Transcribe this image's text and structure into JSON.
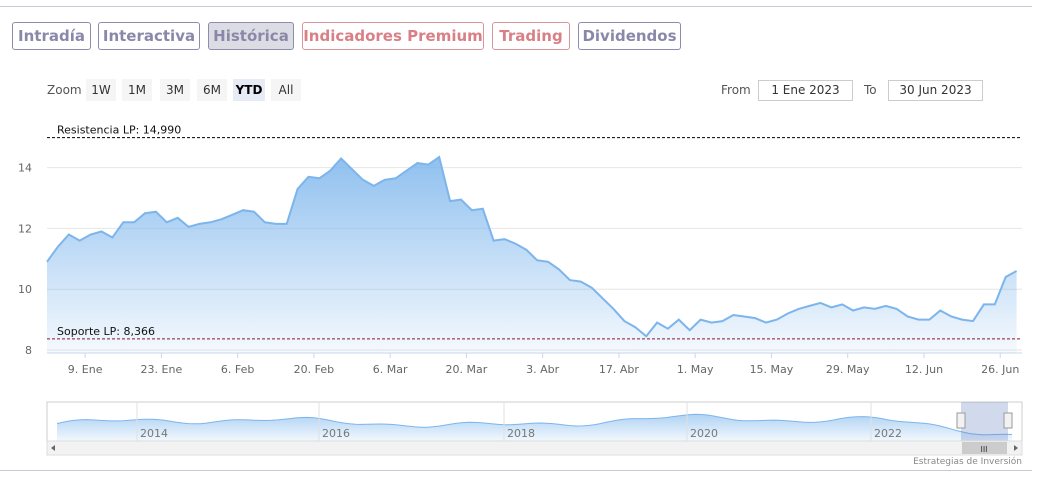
{
  "tabs": [
    {
      "label": "Intradía",
      "style": "normal"
    },
    {
      "label": "Interactiva",
      "style": "normal"
    },
    {
      "label": "Histórica",
      "style": "active"
    },
    {
      "label": "Indicadores Premium",
      "style": "premium"
    },
    {
      "label": "Trading",
      "style": "premium"
    },
    {
      "label": "Dividendos",
      "style": "normal"
    }
  ],
  "range_selector": {
    "zoom_label": "Zoom",
    "buttons": [
      "1W",
      "1M",
      "3M",
      "6M",
      "YTD",
      "All"
    ],
    "selected": "YTD",
    "from_label": "From",
    "from_value": "1 Ene 2023",
    "to_label": "To",
    "to_value": "30 Jun 2023"
  },
  "colors": {
    "accent": "#7cb5ec",
    "tab_border": "#8e8cae",
    "premium": "#d98087",
    "resistance_line": "#000000",
    "support_line": "#8b1a2b"
  },
  "chart_data": {
    "type": "area",
    "title": "",
    "xlabel": "",
    "ylabel": "",
    "ylim": [
      7.9,
      15.7
    ],
    "y_ticks": [
      8,
      10,
      12,
      14
    ],
    "x_ticks": [
      "9. Ene",
      "23. Ene",
      "6. Feb",
      "20. Feb",
      "6. Mar",
      "20. Mar",
      "3. Abr",
      "17. Abr",
      "1. May",
      "15. May",
      "29. May",
      "12. Jun",
      "26. Jun"
    ],
    "x_start": "2023-01-02",
    "x_end": "2023-06-30",
    "grid": true,
    "series": [
      {
        "points": [
          [
            "2023-01-02",
            10.9
          ],
          [
            "2023-01-04",
            11.4
          ],
          [
            "2023-01-06",
            11.8
          ],
          [
            "2023-01-08",
            11.6
          ],
          [
            "2023-01-10",
            11.8
          ],
          [
            "2023-01-12",
            11.9
          ],
          [
            "2023-01-14",
            11.7
          ],
          [
            "2023-01-16",
            12.2
          ],
          [
            "2023-01-18",
            12.2
          ],
          [
            "2023-01-20",
            12.5
          ],
          [
            "2023-01-22",
            12.55
          ],
          [
            "2023-01-24",
            12.2
          ],
          [
            "2023-01-26",
            12.35
          ],
          [
            "2023-01-28",
            12.05
          ],
          [
            "2023-01-30",
            12.15
          ],
          [
            "2023-02-01",
            12.2
          ],
          [
            "2023-02-03",
            12.3
          ],
          [
            "2023-02-05",
            12.45
          ],
          [
            "2023-02-07",
            12.6
          ],
          [
            "2023-02-09",
            12.55
          ],
          [
            "2023-02-11",
            12.2
          ],
          [
            "2023-02-13",
            12.15
          ],
          [
            "2023-02-15",
            12.15
          ],
          [
            "2023-02-17",
            13.3
          ],
          [
            "2023-02-19",
            13.7
          ],
          [
            "2023-02-21",
            13.65
          ],
          [
            "2023-02-23",
            13.9
          ],
          [
            "2023-02-25",
            14.3
          ],
          [
            "2023-02-27",
            13.95
          ],
          [
            "2023-03-01",
            13.6
          ],
          [
            "2023-03-03",
            13.4
          ],
          [
            "2023-03-05",
            13.6
          ],
          [
            "2023-03-07",
            13.65
          ],
          [
            "2023-03-09",
            13.9
          ],
          [
            "2023-03-11",
            14.15
          ],
          [
            "2023-03-13",
            14.1
          ],
          [
            "2023-03-15",
            14.35
          ],
          [
            "2023-03-17",
            12.9
          ],
          [
            "2023-03-19",
            12.95
          ],
          [
            "2023-03-21",
            12.6
          ],
          [
            "2023-03-23",
            12.65
          ],
          [
            "2023-03-25",
            11.6
          ],
          [
            "2023-03-27",
            11.65
          ],
          [
            "2023-03-29",
            11.5
          ],
          [
            "2023-03-31",
            11.3
          ],
          [
            "2023-04-02",
            10.95
          ],
          [
            "2023-04-04",
            10.9
          ],
          [
            "2023-04-06",
            10.65
          ],
          [
            "2023-04-08",
            10.3
          ],
          [
            "2023-04-10",
            10.25
          ],
          [
            "2023-04-12",
            10.05
          ],
          [
            "2023-04-14",
            9.7
          ],
          [
            "2023-04-16",
            9.35
          ],
          [
            "2023-04-18",
            8.95
          ],
          [
            "2023-04-20",
            8.75
          ],
          [
            "2023-04-22",
            8.45
          ],
          [
            "2023-04-24",
            8.9
          ],
          [
            "2023-04-26",
            8.7
          ],
          [
            "2023-04-28",
            9.0
          ],
          [
            "2023-04-30",
            8.65
          ],
          [
            "2023-05-02",
            9.0
          ],
          [
            "2023-05-04",
            8.9
          ],
          [
            "2023-05-06",
            8.95
          ],
          [
            "2023-05-08",
            9.15
          ],
          [
            "2023-05-10",
            9.1
          ],
          [
            "2023-05-12",
            9.05
          ],
          [
            "2023-05-14",
            8.9
          ],
          [
            "2023-05-16",
            9.0
          ],
          [
            "2023-05-18",
            9.2
          ],
          [
            "2023-05-20",
            9.35
          ],
          [
            "2023-05-22",
            9.45
          ],
          [
            "2023-05-24",
            9.55
          ],
          [
            "2023-05-26",
            9.4
          ],
          [
            "2023-05-28",
            9.5
          ],
          [
            "2023-05-30",
            9.3
          ],
          [
            "2023-06-01",
            9.4
          ],
          [
            "2023-06-03",
            9.35
          ],
          [
            "2023-06-05",
            9.45
          ],
          [
            "2023-06-07",
            9.35
          ],
          [
            "2023-06-09",
            9.1
          ],
          [
            "2023-06-11",
            9.0
          ],
          [
            "2023-06-13",
            9.0
          ],
          [
            "2023-06-15",
            9.3
          ],
          [
            "2023-06-17",
            9.1
          ],
          [
            "2023-06-19",
            9.0
          ],
          [
            "2023-06-21",
            8.95
          ],
          [
            "2023-06-23",
            9.5
          ],
          [
            "2023-06-25",
            9.5
          ],
          [
            "2023-06-27",
            10.4
          ],
          [
            "2023-06-29",
            10.6
          ]
        ]
      }
    ],
    "annotations": [
      {
        "label": "Resistencia LP: 14,990",
        "value": 14.99,
        "style": "dashed",
        "color": "#000000"
      },
      {
        "label": "Soporte LP: 8,366",
        "value": 8.366,
        "style": "dashed",
        "color": "#8b1a2b"
      }
    ]
  },
  "navigator": {
    "year_labels": [
      "2014",
      "2016",
      "2018",
      "2020",
      "2022"
    ],
    "scroll_handle": "III"
  },
  "credit": "Estrategias de Inversión"
}
